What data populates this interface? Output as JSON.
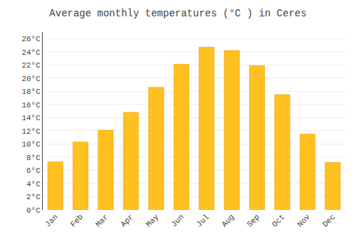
{
  "chart_data": {
    "type": "bar",
    "title": "Average monthly temperatures (°C ) in Ceres",
    "categories": [
      "Jan",
      "Feb",
      "Mar",
      "Apr",
      "May",
      "Jun",
      "Jul",
      "Aug",
      "Sep",
      "Oct",
      "Nov",
      "Dec"
    ],
    "values": [
      7.3,
      10.3,
      12.1,
      14.8,
      18.6,
      22.1,
      24.7,
      24.2,
      21.9,
      17.5,
      11.5,
      7.2
    ],
    "color": "#FFC020",
    "ylim": [
      0,
      27
    ],
    "yticks": [
      {
        "value": 0,
        "label": "0°C"
      },
      {
        "value": 2,
        "label": "2°C"
      },
      {
        "value": 4,
        "label": "4°C"
      },
      {
        "value": 6,
        "label": "6°C"
      },
      {
        "value": 8,
        "label": "8°C"
      },
      {
        "value": 10,
        "label": "10°C"
      },
      {
        "value": 12,
        "label": "12°C"
      },
      {
        "value": 14,
        "label": "14°C"
      },
      {
        "value": 16,
        "label": "16°C"
      },
      {
        "value": 18,
        "label": "18°C"
      },
      {
        "value": 20,
        "label": "20°C"
      },
      {
        "value": 22,
        "label": "22°C"
      },
      {
        "value": 24,
        "label": "24°C"
      },
      {
        "value": 26,
        "label": "26°C"
      }
    ],
    "grid": true
  }
}
